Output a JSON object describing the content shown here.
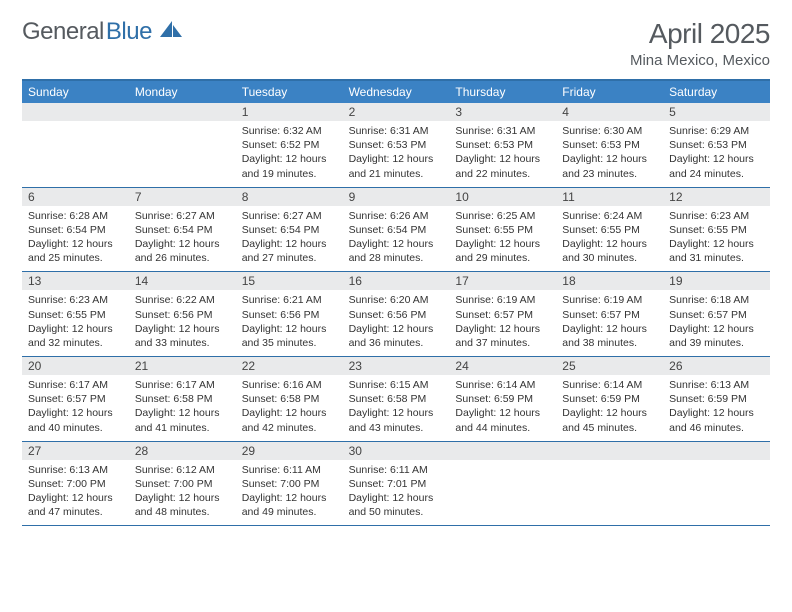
{
  "logo": {
    "text1": "General",
    "text2": "Blue"
  },
  "title": "April 2025",
  "location": "Mina Mexico, Mexico",
  "colors": {
    "headerBar": "#3b82c4",
    "accentLine": "#2f6fa8",
    "dayNumBg": "#e9eaeb",
    "textDark": "#333333",
    "textMuted": "#555a5f"
  },
  "fonts": {
    "body": "Arial",
    "title_size_pt": 21,
    "location_size_pt": 11,
    "dow_size_pt": 9,
    "cell_size_pt": 8
  },
  "daysOfWeek": [
    "Sunday",
    "Monday",
    "Tuesday",
    "Wednesday",
    "Thursday",
    "Friday",
    "Saturday"
  ],
  "weeks": [
    [
      {
        "num": "",
        "sunrise": "",
        "sunset": "",
        "daylight": ""
      },
      {
        "num": "",
        "sunrise": "",
        "sunset": "",
        "daylight": ""
      },
      {
        "num": "1",
        "sunrise": "Sunrise: 6:32 AM",
        "sunset": "Sunset: 6:52 PM",
        "daylight": "Daylight: 12 hours and 19 minutes."
      },
      {
        "num": "2",
        "sunrise": "Sunrise: 6:31 AM",
        "sunset": "Sunset: 6:53 PM",
        "daylight": "Daylight: 12 hours and 21 minutes."
      },
      {
        "num": "3",
        "sunrise": "Sunrise: 6:31 AM",
        "sunset": "Sunset: 6:53 PM",
        "daylight": "Daylight: 12 hours and 22 minutes."
      },
      {
        "num": "4",
        "sunrise": "Sunrise: 6:30 AM",
        "sunset": "Sunset: 6:53 PM",
        "daylight": "Daylight: 12 hours and 23 minutes."
      },
      {
        "num": "5",
        "sunrise": "Sunrise: 6:29 AM",
        "sunset": "Sunset: 6:53 PM",
        "daylight": "Daylight: 12 hours and 24 minutes."
      }
    ],
    [
      {
        "num": "6",
        "sunrise": "Sunrise: 6:28 AM",
        "sunset": "Sunset: 6:54 PM",
        "daylight": "Daylight: 12 hours and 25 minutes."
      },
      {
        "num": "7",
        "sunrise": "Sunrise: 6:27 AM",
        "sunset": "Sunset: 6:54 PM",
        "daylight": "Daylight: 12 hours and 26 minutes."
      },
      {
        "num": "8",
        "sunrise": "Sunrise: 6:27 AM",
        "sunset": "Sunset: 6:54 PM",
        "daylight": "Daylight: 12 hours and 27 minutes."
      },
      {
        "num": "9",
        "sunrise": "Sunrise: 6:26 AM",
        "sunset": "Sunset: 6:54 PM",
        "daylight": "Daylight: 12 hours and 28 minutes."
      },
      {
        "num": "10",
        "sunrise": "Sunrise: 6:25 AM",
        "sunset": "Sunset: 6:55 PM",
        "daylight": "Daylight: 12 hours and 29 minutes."
      },
      {
        "num": "11",
        "sunrise": "Sunrise: 6:24 AM",
        "sunset": "Sunset: 6:55 PM",
        "daylight": "Daylight: 12 hours and 30 minutes."
      },
      {
        "num": "12",
        "sunrise": "Sunrise: 6:23 AM",
        "sunset": "Sunset: 6:55 PM",
        "daylight": "Daylight: 12 hours and 31 minutes."
      }
    ],
    [
      {
        "num": "13",
        "sunrise": "Sunrise: 6:23 AM",
        "sunset": "Sunset: 6:55 PM",
        "daylight": "Daylight: 12 hours and 32 minutes."
      },
      {
        "num": "14",
        "sunrise": "Sunrise: 6:22 AM",
        "sunset": "Sunset: 6:56 PM",
        "daylight": "Daylight: 12 hours and 33 minutes."
      },
      {
        "num": "15",
        "sunrise": "Sunrise: 6:21 AM",
        "sunset": "Sunset: 6:56 PM",
        "daylight": "Daylight: 12 hours and 35 minutes."
      },
      {
        "num": "16",
        "sunrise": "Sunrise: 6:20 AM",
        "sunset": "Sunset: 6:56 PM",
        "daylight": "Daylight: 12 hours and 36 minutes."
      },
      {
        "num": "17",
        "sunrise": "Sunrise: 6:19 AM",
        "sunset": "Sunset: 6:57 PM",
        "daylight": "Daylight: 12 hours and 37 minutes."
      },
      {
        "num": "18",
        "sunrise": "Sunrise: 6:19 AM",
        "sunset": "Sunset: 6:57 PM",
        "daylight": "Daylight: 12 hours and 38 minutes."
      },
      {
        "num": "19",
        "sunrise": "Sunrise: 6:18 AM",
        "sunset": "Sunset: 6:57 PM",
        "daylight": "Daylight: 12 hours and 39 minutes."
      }
    ],
    [
      {
        "num": "20",
        "sunrise": "Sunrise: 6:17 AM",
        "sunset": "Sunset: 6:57 PM",
        "daylight": "Daylight: 12 hours and 40 minutes."
      },
      {
        "num": "21",
        "sunrise": "Sunrise: 6:17 AM",
        "sunset": "Sunset: 6:58 PM",
        "daylight": "Daylight: 12 hours and 41 minutes."
      },
      {
        "num": "22",
        "sunrise": "Sunrise: 6:16 AM",
        "sunset": "Sunset: 6:58 PM",
        "daylight": "Daylight: 12 hours and 42 minutes."
      },
      {
        "num": "23",
        "sunrise": "Sunrise: 6:15 AM",
        "sunset": "Sunset: 6:58 PM",
        "daylight": "Daylight: 12 hours and 43 minutes."
      },
      {
        "num": "24",
        "sunrise": "Sunrise: 6:14 AM",
        "sunset": "Sunset: 6:59 PM",
        "daylight": "Daylight: 12 hours and 44 minutes."
      },
      {
        "num": "25",
        "sunrise": "Sunrise: 6:14 AM",
        "sunset": "Sunset: 6:59 PM",
        "daylight": "Daylight: 12 hours and 45 minutes."
      },
      {
        "num": "26",
        "sunrise": "Sunrise: 6:13 AM",
        "sunset": "Sunset: 6:59 PM",
        "daylight": "Daylight: 12 hours and 46 minutes."
      }
    ],
    [
      {
        "num": "27",
        "sunrise": "Sunrise: 6:13 AM",
        "sunset": "Sunset: 7:00 PM",
        "daylight": "Daylight: 12 hours and 47 minutes."
      },
      {
        "num": "28",
        "sunrise": "Sunrise: 6:12 AM",
        "sunset": "Sunset: 7:00 PM",
        "daylight": "Daylight: 12 hours and 48 minutes."
      },
      {
        "num": "29",
        "sunrise": "Sunrise: 6:11 AM",
        "sunset": "Sunset: 7:00 PM",
        "daylight": "Daylight: 12 hours and 49 minutes."
      },
      {
        "num": "30",
        "sunrise": "Sunrise: 6:11 AM",
        "sunset": "Sunset: 7:01 PM",
        "daylight": "Daylight: 12 hours and 50 minutes."
      },
      {
        "num": "",
        "sunrise": "",
        "sunset": "",
        "daylight": ""
      },
      {
        "num": "",
        "sunrise": "",
        "sunset": "",
        "daylight": ""
      },
      {
        "num": "",
        "sunrise": "",
        "sunset": "",
        "daylight": ""
      }
    ]
  ]
}
